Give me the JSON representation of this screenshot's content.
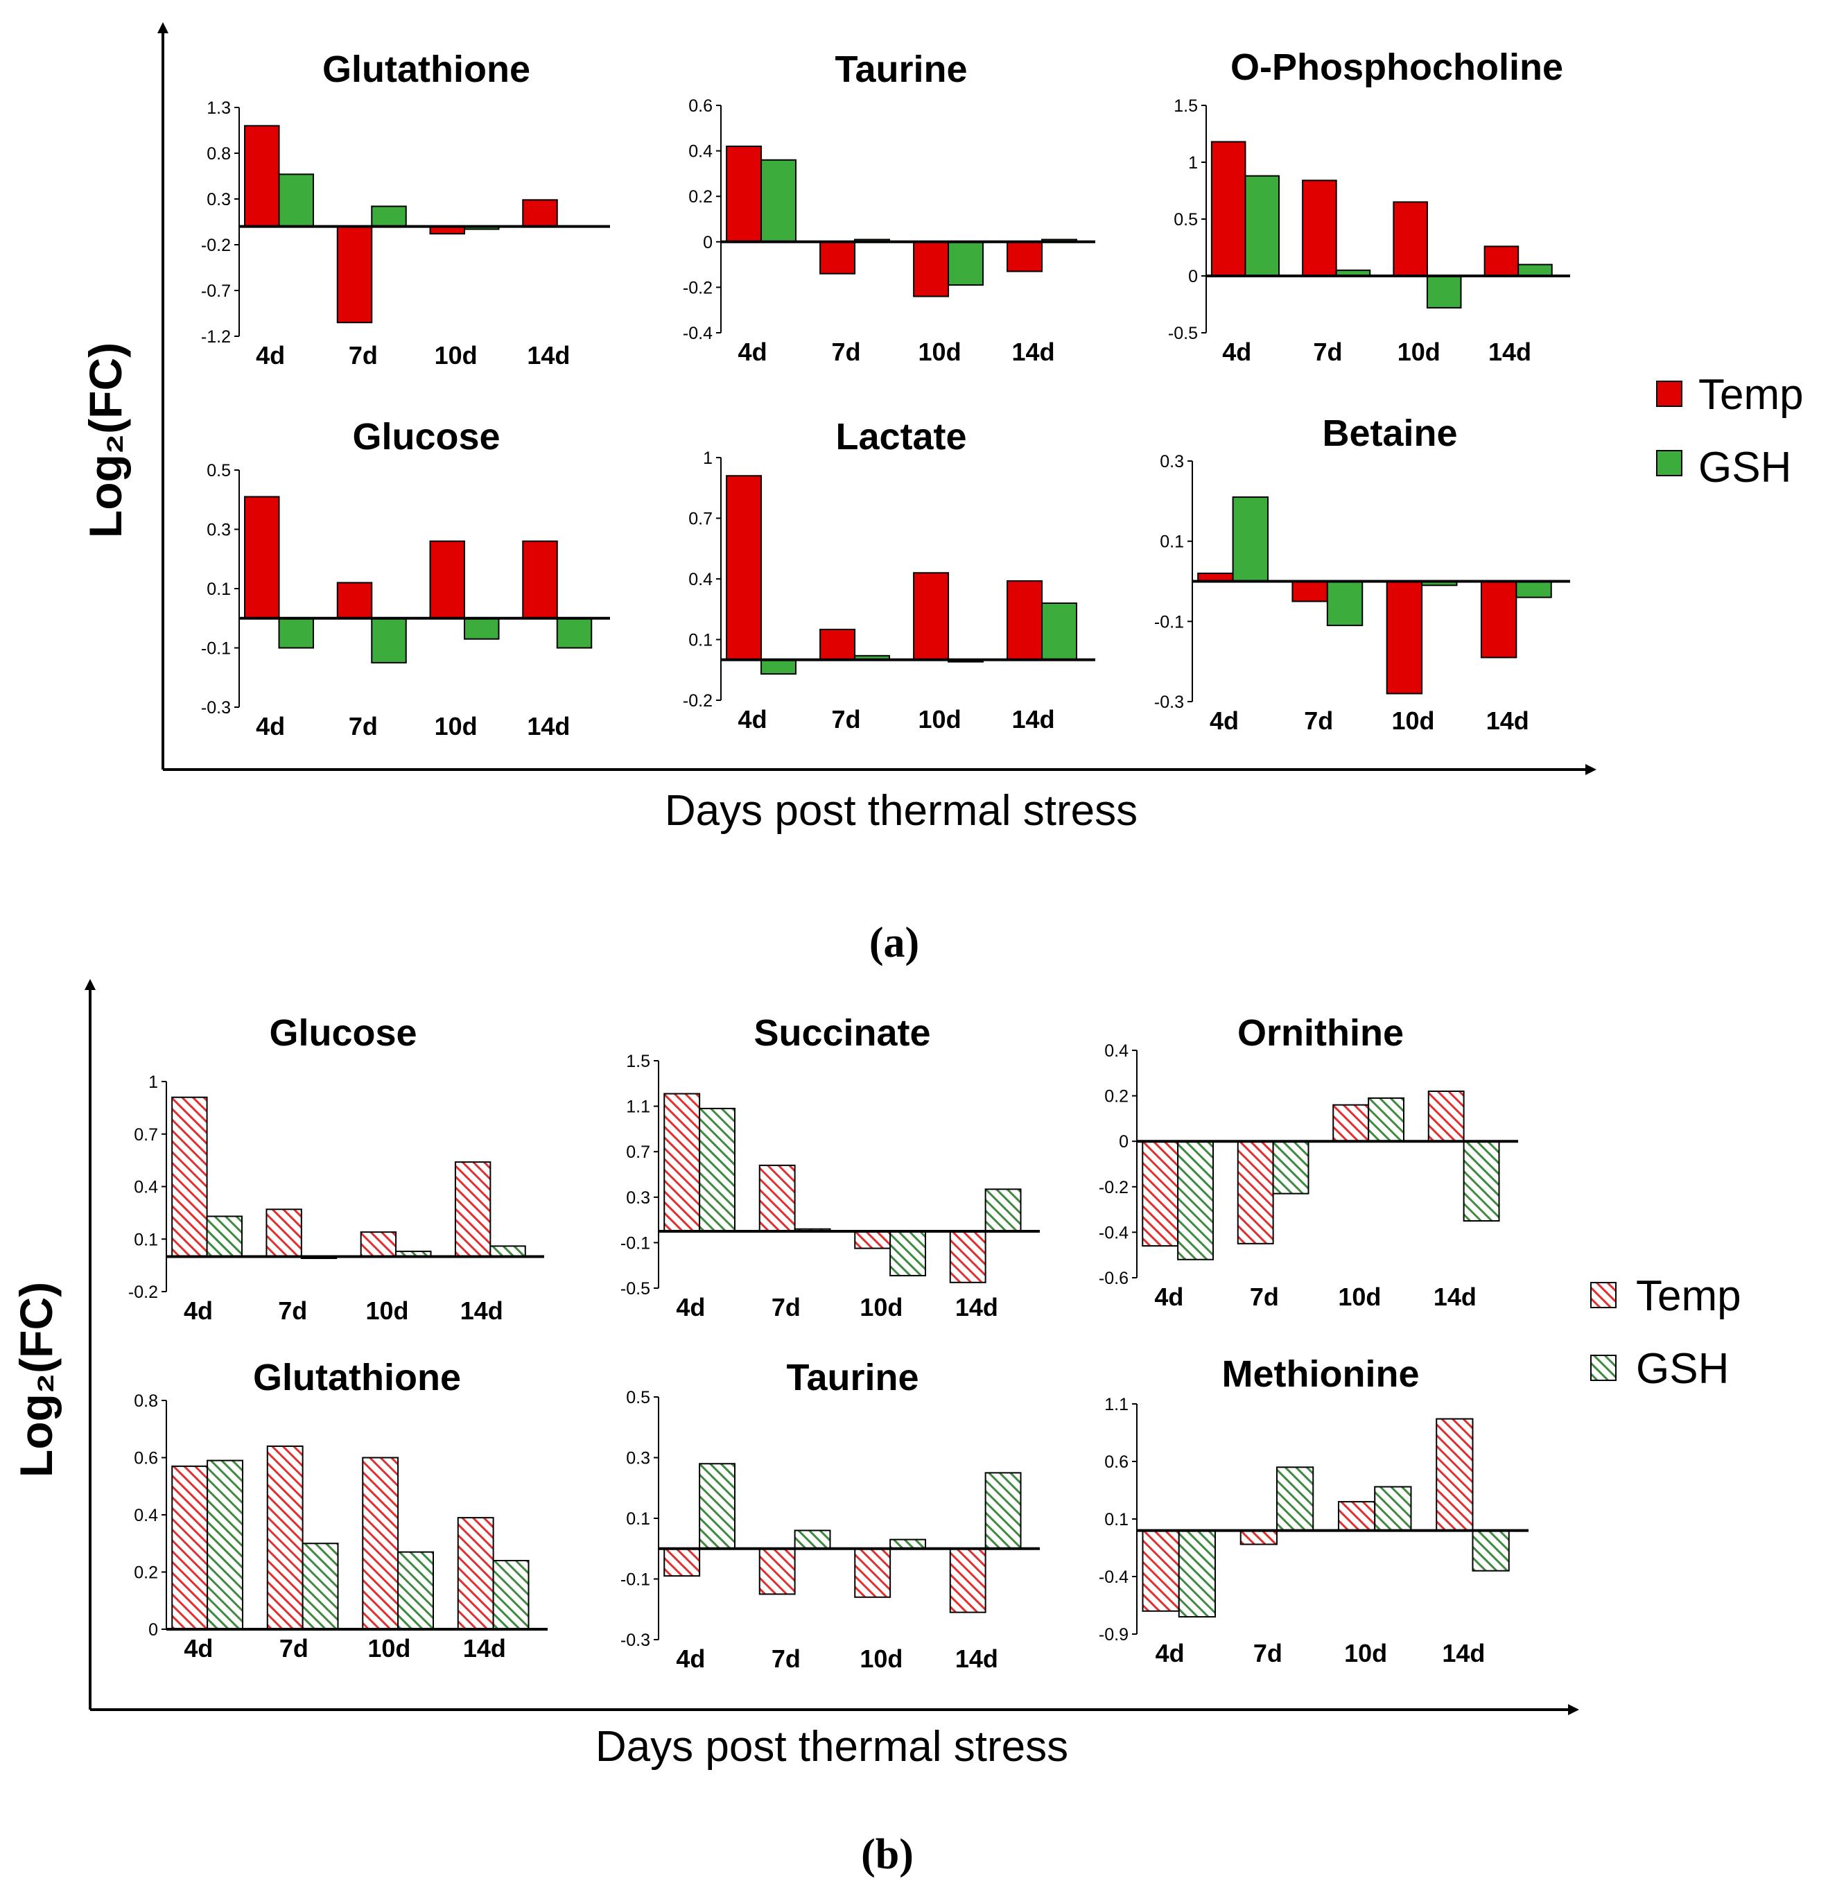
{
  "colors": {
    "temp": "#e00000",
    "gsh": "#3cad3c",
    "temp_hatch": "#e03030",
    "gsh_hatch": "#3f8a3f",
    "axis": "#000000"
  },
  "panels": [
    {
      "label": "(a)",
      "xlabel": "Days post thermal stress",
      "ylabel": "Log₂(FC)",
      "legend": [
        "Temp",
        "GSH"
      ],
      "style": "solid"
    },
    {
      "label": "(b)",
      "xlabel": "Days post thermal stress",
      "ylabel": "Log₂(FC)",
      "legend": [
        "Temp",
        "GSH"
      ],
      "style": "hatched"
    }
  ],
  "chart_data": [
    {
      "panel": "a",
      "type": "bar",
      "title": "Glutathione",
      "categories": [
        "4d",
        "7d",
        "10d",
        "14d"
      ],
      "series": [
        {
          "name": "Temp",
          "values": [
            1.1,
            -1.05,
            -0.08,
            0.29
          ]
        },
        {
          "name": "GSH",
          "values": [
            0.57,
            0.22,
            -0.03,
            0.0
          ]
        }
      ],
      "ylim": [
        -1.2,
        1.3
      ],
      "ticks": [
        "1.3",
        "0.8",
        "0.3",
        "-0.2",
        "-0.7",
        "-1.2"
      ],
      "tick_values": [
        1.3,
        0.8,
        0.3,
        -0.2,
        -0.7,
        -1.2
      ]
    },
    {
      "panel": "a",
      "type": "bar",
      "title": "Taurine",
      "categories": [
        "4d",
        "7d",
        "10d",
        "14d"
      ],
      "series": [
        {
          "name": "Temp",
          "values": [
            0.42,
            -0.14,
            -0.24,
            -0.13
          ]
        },
        {
          "name": "GSH",
          "values": [
            0.36,
            0.01,
            -0.19,
            0.01
          ]
        }
      ],
      "ylim": [
        -0.4,
        0.6
      ],
      "ticks": [
        "0.6",
        "0.4",
        "0.2",
        "0",
        "-0.2",
        "-0.4"
      ],
      "tick_values": [
        0.6,
        0.4,
        0.2,
        0,
        -0.2,
        -0.4
      ]
    },
    {
      "panel": "a",
      "type": "bar",
      "title": "O-Phosphocholine",
      "categories": [
        "4d",
        "7d",
        "10d",
        "14d"
      ],
      "series": [
        {
          "name": "Temp",
          "values": [
            1.18,
            0.84,
            0.65,
            0.26
          ]
        },
        {
          "name": "GSH",
          "values": [
            0.88,
            0.05,
            -0.28,
            0.1
          ]
        }
      ],
      "ylim": [
        -0.5,
        1.5
      ],
      "ticks": [
        "1.5",
        "1",
        "0.5",
        "0",
        "-0.5"
      ],
      "tick_values": [
        1.5,
        1,
        0.5,
        0,
        -0.5
      ]
    },
    {
      "panel": "a",
      "type": "bar",
      "title": "Glucose",
      "categories": [
        "4d",
        "7d",
        "10d",
        "14d"
      ],
      "series": [
        {
          "name": "Temp",
          "values": [
            0.41,
            0.12,
            0.26,
            0.26
          ]
        },
        {
          "name": "GSH",
          "values": [
            -0.1,
            -0.15,
            -0.07,
            -0.1
          ]
        }
      ],
      "ylim": [
        -0.3,
        0.5
      ],
      "ticks": [
        "0.5",
        "0.3",
        "0.1",
        "-0.1",
        "-0.3"
      ],
      "tick_values": [
        0.5,
        0.3,
        0.1,
        -0.1,
        -0.3
      ]
    },
    {
      "panel": "a",
      "type": "bar",
      "title": "Lactate",
      "categories": [
        "4d",
        "7d",
        "10d",
        "14d"
      ],
      "series": [
        {
          "name": "Temp",
          "values": [
            0.91,
            0.15,
            0.43,
            0.39
          ]
        },
        {
          "name": "GSH",
          "values": [
            -0.07,
            0.02,
            -0.01,
            0.28
          ]
        }
      ],
      "ylim": [
        -0.2,
        1.0
      ],
      "ticks": [
        "1",
        "0.7",
        "0.4",
        "0.1",
        "-0.2"
      ],
      "tick_values": [
        1,
        0.7,
        0.4,
        0.1,
        -0.2
      ]
    },
    {
      "panel": "a",
      "type": "bar",
      "title": "Betaine",
      "categories": [
        "4d",
        "7d",
        "10d",
        "14d"
      ],
      "series": [
        {
          "name": "Temp",
          "values": [
            0.02,
            -0.05,
            -0.28,
            -0.19
          ]
        },
        {
          "name": "GSH",
          "values": [
            0.21,
            -0.11,
            -0.01,
            -0.04
          ]
        }
      ],
      "ylim": [
        -0.3,
        0.3
      ],
      "ticks": [
        "0.3",
        "0.1",
        "-0.1",
        "-0.3"
      ],
      "tick_values": [
        0.3,
        0.1,
        -0.1,
        -0.3
      ]
    },
    {
      "panel": "b",
      "type": "bar",
      "title": "Glucose",
      "categories": [
        "4d",
        "7d",
        "10d",
        "14d"
      ],
      "series": [
        {
          "name": "Temp",
          "values": [
            0.91,
            0.27,
            0.14,
            0.54
          ]
        },
        {
          "name": "GSH",
          "values": [
            0.23,
            -0.01,
            0.03,
            0.06
          ]
        }
      ],
      "ylim": [
        -0.2,
        1.0
      ],
      "ticks": [
        "1",
        "0.7",
        "0.4",
        "0.1",
        "-0.2"
      ],
      "tick_values": [
        1,
        0.7,
        0.4,
        0.1,
        -0.2
      ]
    },
    {
      "panel": "b",
      "type": "bar",
      "title": "Succinate",
      "categories": [
        "4d",
        "7d",
        "10d",
        "14d"
      ],
      "series": [
        {
          "name": "Temp",
          "values": [
            1.21,
            0.58,
            -0.15,
            -0.45
          ]
        },
        {
          "name": "GSH",
          "values": [
            1.08,
            0.02,
            -0.39,
            0.37
          ]
        }
      ],
      "ylim": [
        -0.5,
        1.5
      ],
      "ticks": [
        "1.5",
        "1.1",
        "0.7",
        "0.3",
        "-0.1",
        "-0.5"
      ],
      "tick_values": [
        1.5,
        1.1,
        0.7,
        0.3,
        -0.1,
        -0.5
      ]
    },
    {
      "panel": "b",
      "type": "bar",
      "title": "Ornithine",
      "categories": [
        "4d",
        "7d",
        "10d",
        "14d"
      ],
      "series": [
        {
          "name": "Temp",
          "values": [
            -0.46,
            -0.45,
            0.16,
            0.22
          ]
        },
        {
          "name": "GSH",
          "values": [
            -0.52,
            -0.23,
            0.19,
            -0.35
          ]
        }
      ],
      "ylim": [
        -0.6,
        0.4
      ],
      "ticks": [
        "0.4",
        "0.2",
        "0",
        "-0.2",
        "-0.4",
        "-0.6"
      ],
      "tick_values": [
        0.4,
        0.2,
        0,
        -0.2,
        -0.4,
        -0.6
      ]
    },
    {
      "panel": "b",
      "type": "bar",
      "title": "Glutathione",
      "categories": [
        "4d",
        "7d",
        "10d",
        "14d"
      ],
      "series": [
        {
          "name": "Temp",
          "values": [
            0.57,
            0.64,
            0.6,
            0.39
          ]
        },
        {
          "name": "GSH",
          "values": [
            0.59,
            0.3,
            0.27,
            0.24
          ]
        }
      ],
      "ylim": [
        0,
        0.8
      ],
      "ticks": [
        "0.8",
        "0.6",
        "0.4",
        "0.2",
        "0"
      ],
      "tick_values": [
        0.8,
        0.6,
        0.4,
        0.2,
        0
      ]
    },
    {
      "panel": "b",
      "type": "bar",
      "title": "Taurine",
      "categories": [
        "4d",
        "7d",
        "10d",
        "14d"
      ],
      "series": [
        {
          "name": "Temp",
          "values": [
            -0.09,
            -0.15,
            -0.16,
            -0.21
          ]
        },
        {
          "name": "GSH",
          "values": [
            0.28,
            0.06,
            0.03,
            0.25
          ]
        }
      ],
      "ylim": [
        -0.3,
        0.5
      ],
      "ticks": [
        "0.5",
        "0.3",
        "0.1",
        "-0.1",
        "-0.3"
      ],
      "tick_values": [
        0.5,
        0.3,
        0.1,
        -0.1,
        -0.3
      ]
    },
    {
      "panel": "b",
      "type": "bar",
      "title": "Methionine",
      "categories": [
        "4d",
        "7d",
        "10d",
        "14d"
      ],
      "series": [
        {
          "name": "Temp",
          "values": [
            -0.7,
            -0.12,
            0.25,
            0.97
          ]
        },
        {
          "name": "GSH",
          "values": [
            -0.75,
            0.55,
            0.38,
            -0.35
          ]
        }
      ],
      "ylim": [
        -0.9,
        1.1
      ],
      "ticks": [
        "1.1",
        "0.6",
        "0.1",
        "-0.4",
        "-0.9"
      ],
      "tick_values": [
        1.1,
        0.6,
        0.1,
        -0.4,
        -0.9
      ]
    }
  ]
}
